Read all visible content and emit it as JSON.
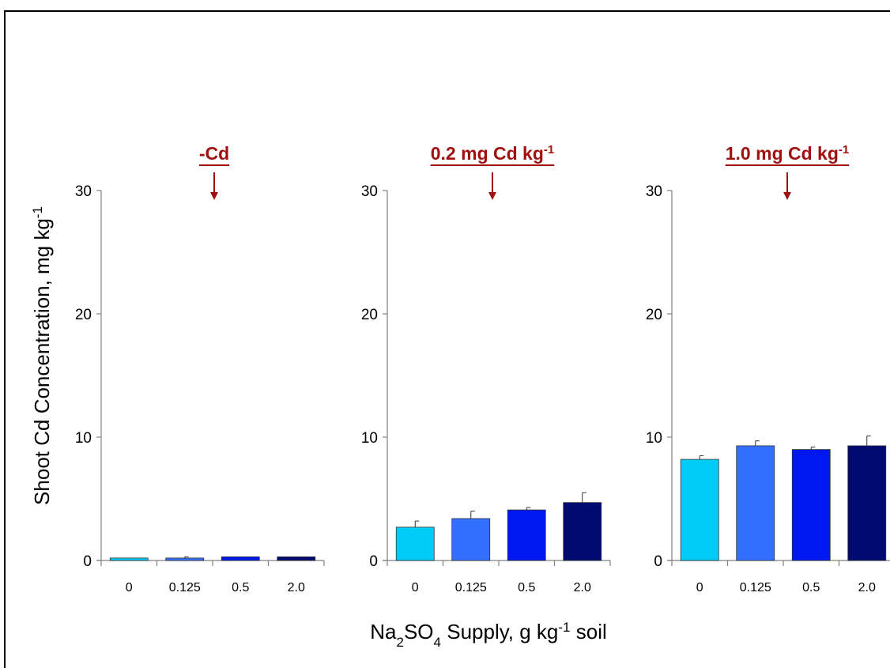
{
  "chart_data": {
    "type": "bar",
    "ylabel": "Shoot Cd Concentration, mg kg-1",
    "xlabel": "Na2SO4 Supply, g kg-1 soil",
    "ylim": [
      0,
      30
    ],
    "yticks": [
      0,
      10,
      20,
      30
    ],
    "categories": [
      "0",
      "0.125",
      "0.5",
      "2.0"
    ],
    "colors": [
      "#00ccf5",
      "#3370ff",
      "#0018f0",
      "#000a70"
    ],
    "panels": [
      {
        "title": "-Cd",
        "title_sup": "",
        "values": [
          0.2,
          0.2,
          0.3,
          0.3
        ],
        "errors": [
          0.0,
          0.1,
          0.0,
          0.0
        ]
      },
      {
        "title": "0.2 mg Cd kg",
        "title_sup": "-1",
        "values": [
          2.7,
          3.4,
          4.1,
          4.7
        ],
        "errors": [
          0.5,
          0.6,
          0.2,
          0.8
        ]
      },
      {
        "title": "1.0 mg Cd kg",
        "title_sup": "-1",
        "values": [
          8.2,
          9.3,
          9.0,
          9.3
        ],
        "errors": [
          0.3,
          0.4,
          0.2,
          0.8
        ]
      }
    ],
    "xlabel_parts": {
      "a": "Na",
      "b": "2",
      "c": "SO",
      "d": "4",
      "e": " Supply, g kg",
      "f": "-1",
      "g": " soil"
    },
    "ylabel_parts": {
      "a": "Shoot Cd Concentration, mg kg",
      "b": "-1"
    },
    "legend": "none",
    "grid": false
  }
}
